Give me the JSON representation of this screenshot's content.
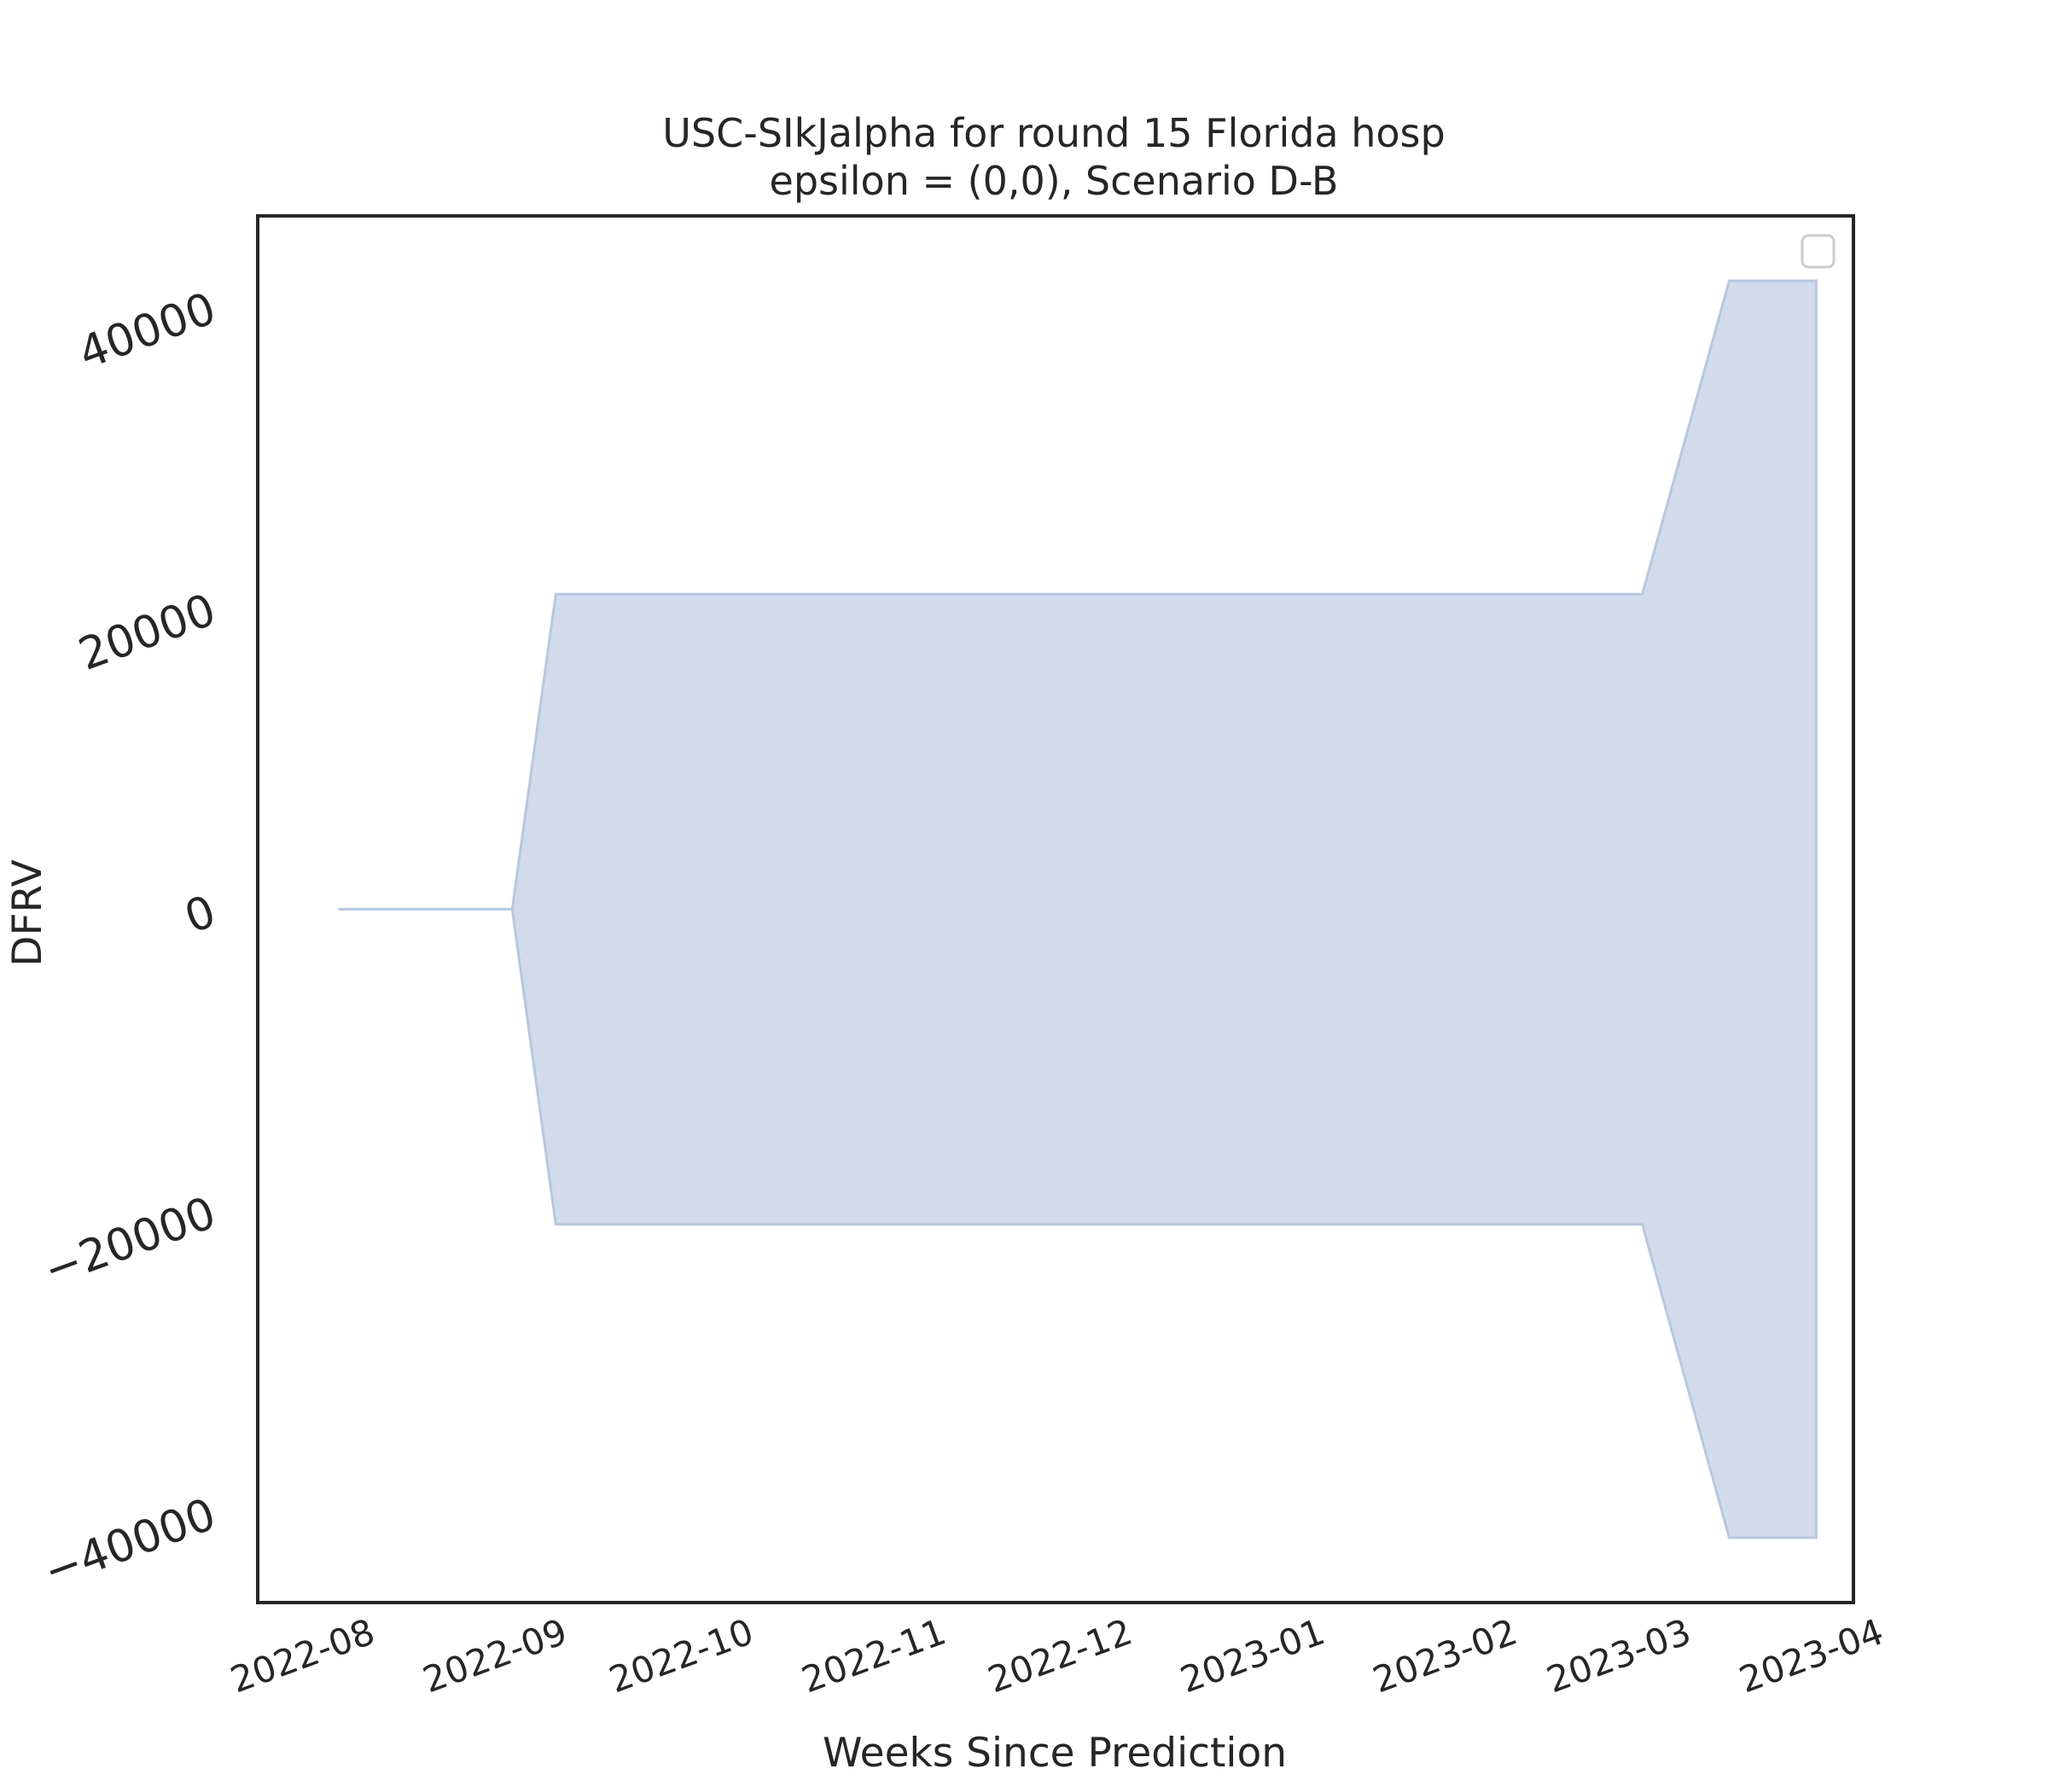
{
  "chart_data": {
    "type": "area",
    "title": "USC-SIkJalpha for round 15 Florida hosp",
    "subtitle": "epsilon = (0,0), Scenario D-B",
    "xlabel": "Weeks Since Prediction",
    "ylabel": "DFRV",
    "xlim": [
      "2022-07-18",
      "2023-04-01"
    ],
    "ylim": [
      -46000,
      46000
    ],
    "x_ticks": [
      "2022-08-01",
      "2022-09-01",
      "2022-10-01",
      "2022-11-01",
      "2022-12-01",
      "2023-01-01",
      "2023-02-01",
      "2023-03-01",
      "2023-04-01"
    ],
    "x_tick_labels": [
      "2022-08",
      "2022-09",
      "2022-10",
      "2022-11",
      "2022-12",
      "2023-01",
      "2023-02",
      "2023-03",
      "2023-04"
    ],
    "y_ticks": [
      -40000,
      -20000,
      0,
      20000,
      40000
    ],
    "y_tick_labels": [
      "−40000",
      "−20000",
      "0",
      "20000",
      "40000"
    ],
    "grid": false,
    "legend": "top-right (empty)",
    "series": [
      {
        "x": [
          "2022-07-31",
          "2022-08-28",
          "2022-09-04",
          "2023-02-26",
          "2023-03-12",
          "2023-03-26"
        ],
        "lower": [
          0,
          0,
          -20900,
          -20900,
          -41700,
          -41700
        ],
        "upper": [
          0,
          0,
          20900,
          20900,
          41700,
          41700
        ]
      }
    ],
    "colors": {
      "fill": "#d1dbeb",
      "edge": "#b8c7df",
      "axes": "#262626",
      "legend_box": "#cccccc"
    }
  }
}
